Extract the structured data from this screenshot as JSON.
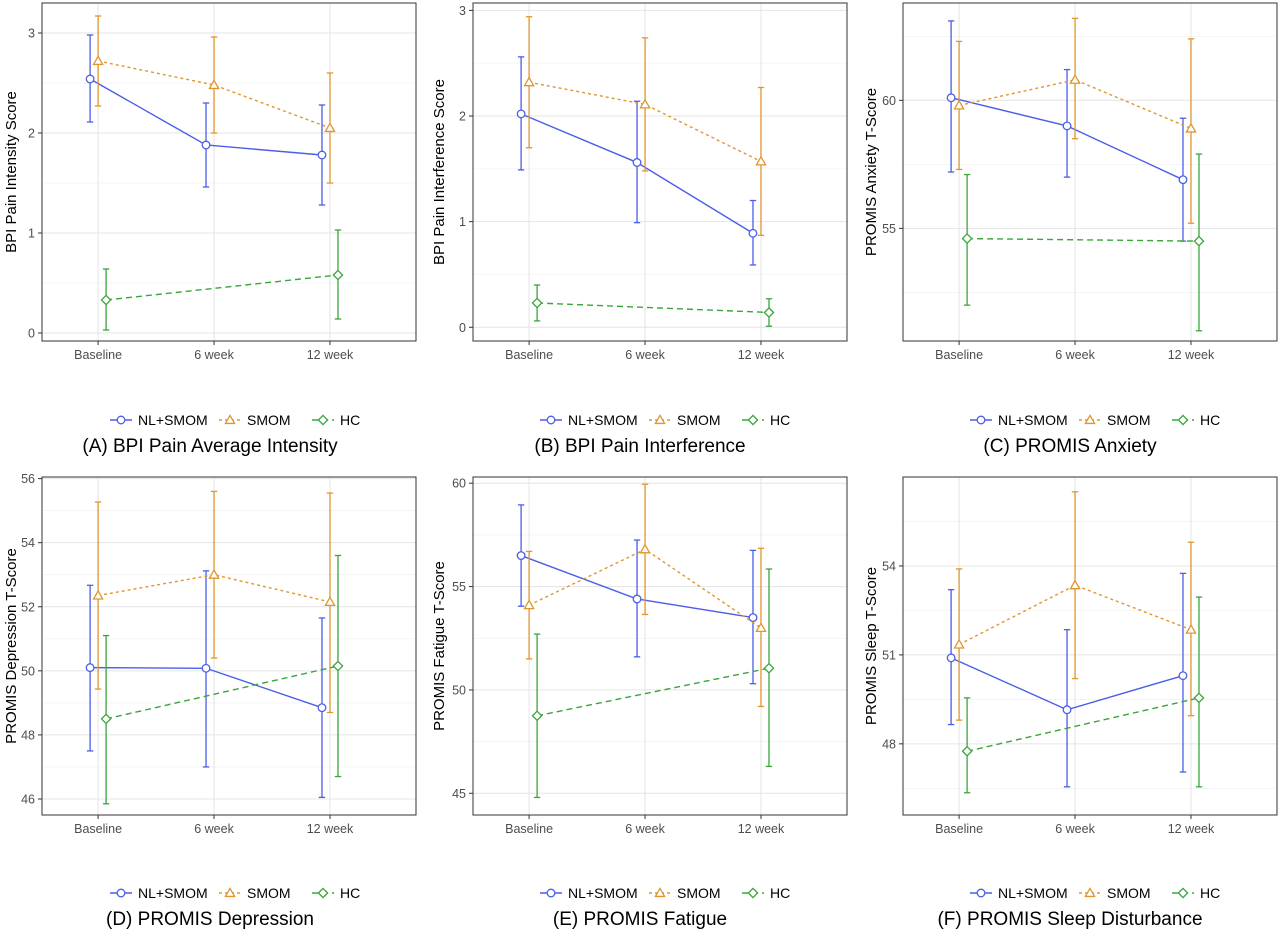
{
  "colors": {
    "NL+SMOM": "#4a5ee8",
    "SMOM": "#e0962e",
    "HC": "#3aa63a"
  },
  "legend": [
    {
      "name": "NL+SMOM",
      "marker": "circle",
      "dash": "solid"
    },
    {
      "name": "SMOM",
      "marker": "triangle",
      "dash": "dotted"
    },
    {
      "name": "HC",
      "marker": "diamond",
      "dash": "dashed"
    }
  ],
  "chart_data": [
    {
      "type": "line",
      "caption": "(A) BPI Pain Average Intensity",
      "ylabel": "BPI Pain Intensity Score",
      "categories": [
        "Baseline",
        "6 week",
        "12 week"
      ],
      "ylim": [
        -0.08,
        3.3
      ],
      "yticks": [
        0,
        1,
        2,
        3
      ],
      "grid": true,
      "legend_position": "bottom",
      "series": [
        {
          "name": "NL+SMOM",
          "values": [
            2.54,
            1.88,
            1.78
          ],
          "err_low": [
            2.11,
            1.46,
            1.28
          ],
          "err_high": [
            2.98,
            2.3,
            2.28
          ]
        },
        {
          "name": "SMOM",
          "values": [
            2.72,
            2.48,
            2.05
          ],
          "err_low": [
            2.27,
            2.0,
            1.5
          ],
          "err_high": [
            3.17,
            2.96,
            2.6
          ]
        },
        {
          "name": "HC",
          "values": [
            0.33,
            null,
            0.58
          ],
          "err_low": [
            0.03,
            null,
            0.14
          ],
          "err_high": [
            0.64,
            null,
            1.03
          ]
        }
      ]
    },
    {
      "type": "line",
      "caption": "(B) BPI Pain Interference",
      "ylabel": "BPI Pain Interference Score",
      "categories": [
        "Baseline",
        "6 week",
        "12 week"
      ],
      "ylim": [
        -0.13,
        3.07
      ],
      "yticks": [
        0,
        1,
        2,
        3
      ],
      "grid": true,
      "legend_position": "bottom",
      "series": [
        {
          "name": "NL+SMOM",
          "values": [
            2.02,
            1.56,
            0.89
          ],
          "err_low": [
            1.49,
            0.99,
            0.59
          ],
          "err_high": [
            2.56,
            2.14,
            1.2
          ]
        },
        {
          "name": "SMOM",
          "values": [
            2.32,
            2.11,
            1.57
          ],
          "err_low": [
            1.7,
            1.48,
            0.87
          ],
          "err_high": [
            2.94,
            2.74,
            2.27
          ]
        },
        {
          "name": "HC",
          "values": [
            0.23,
            null,
            0.14
          ],
          "err_low": [
            0.06,
            null,
            0.01
          ],
          "err_high": [
            0.4,
            null,
            0.27
          ]
        }
      ]
    },
    {
      "type": "line",
      "caption": "(C) PROMIS Anxiety",
      "ylabel": "PROMIS Anxiety T-Score",
      "categories": [
        "Baseline",
        "6 week",
        "12 week"
      ],
      "ylim": [
        50.6,
        63.8
      ],
      "yticks": [
        55,
        60
      ],
      "grid": true,
      "legend_position": "bottom",
      "series": [
        {
          "name": "NL+SMOM",
          "values": [
            60.1,
            59.0,
            56.9
          ],
          "err_low": [
            57.2,
            57.0,
            54.5
          ],
          "err_high": [
            63.1,
            61.2,
            59.3
          ]
        },
        {
          "name": "SMOM",
          "values": [
            59.8,
            60.8,
            58.9
          ],
          "err_low": [
            57.3,
            58.5,
            55.2
          ],
          "err_high": [
            62.3,
            63.2,
            62.4
          ]
        },
        {
          "name": "HC",
          "values": [
            54.6,
            null,
            54.5
          ],
          "err_low": [
            52.0,
            null,
            51.0
          ],
          "err_high": [
            57.1,
            null,
            57.9
          ]
        }
      ]
    },
    {
      "type": "line",
      "caption": "(D) PROMIS Depression",
      "ylabel": "PROMIS Depression T-Score",
      "categories": [
        "Baseline",
        "6 week",
        "12 week"
      ],
      "ylim": [
        45.5,
        56.05
      ],
      "yticks": [
        46,
        48,
        50,
        52,
        54,
        56
      ],
      "grid": true,
      "legend_position": "bottom",
      "series": [
        {
          "name": "NL+SMOM",
          "values": [
            50.1,
            50.08,
            48.85
          ],
          "err_low": [
            47.5,
            47.0,
            46.05
          ],
          "err_high": [
            52.67,
            53.12,
            51.65
          ]
        },
        {
          "name": "SMOM",
          "values": [
            52.35,
            53.0,
            52.15
          ],
          "err_low": [
            49.43,
            50.4,
            48.7
          ],
          "err_high": [
            55.27,
            55.6,
            55.55
          ]
        },
        {
          "name": "HC",
          "values": [
            48.5,
            null,
            50.15
          ],
          "err_low": [
            45.85,
            null,
            46.7
          ],
          "err_high": [
            51.1,
            null,
            53.6
          ]
        }
      ]
    },
    {
      "type": "line",
      "caption": "(E) PROMIS Fatigue",
      "ylabel": "PROMIS Fatigue T-Score",
      "categories": [
        "Baseline",
        "6 week",
        "12 week"
      ],
      "ylim": [
        43.95,
        60.3
      ],
      "yticks": [
        45,
        50,
        55,
        60
      ],
      "grid": true,
      "legend_position": "bottom",
      "series": [
        {
          "name": "NL+SMOM",
          "values": [
            56.5,
            54.4,
            53.5
          ],
          "err_low": [
            54.05,
            51.6,
            50.3
          ],
          "err_high": [
            58.95,
            57.25,
            56.75
          ]
        },
        {
          "name": "SMOM",
          "values": [
            54.1,
            56.8,
            53.0
          ],
          "err_low": [
            51.5,
            53.65,
            49.2
          ],
          "err_high": [
            56.7,
            59.95,
            56.85
          ]
        },
        {
          "name": "HC",
          "values": [
            48.75,
            null,
            51.05
          ],
          "err_low": [
            44.8,
            null,
            46.3
          ],
          "err_high": [
            52.7,
            null,
            55.85
          ]
        }
      ]
    },
    {
      "type": "line",
      "caption": "(F) PROMIS Sleep Disturbance",
      "ylabel": "PROMIS Sleep T-Score",
      "categories": [
        "Baseline",
        "6 week",
        "12 week"
      ],
      "ylim": [
        45.6,
        57.0
      ],
      "yticks": [
        48,
        51,
        54
      ],
      "grid": true,
      "legend_position": "bottom",
      "series": [
        {
          "name": "NL+SMOM",
          "values": [
            50.9,
            49.15,
            50.3
          ],
          "err_low": [
            48.65,
            46.55,
            47.05
          ],
          "err_high": [
            53.2,
            51.85,
            53.75
          ]
        },
        {
          "name": "SMOM",
          "values": [
            51.35,
            53.35,
            51.85
          ],
          "err_low": [
            48.8,
            50.2,
            48.95
          ],
          "err_high": [
            53.9,
            56.5,
            54.8
          ]
        },
        {
          "name": "HC",
          "values": [
            47.75,
            null,
            49.55
          ],
          "err_low": [
            46.35,
            null,
            46.55
          ],
          "err_high": [
            49.55,
            null,
            52.95
          ]
        }
      ]
    }
  ]
}
